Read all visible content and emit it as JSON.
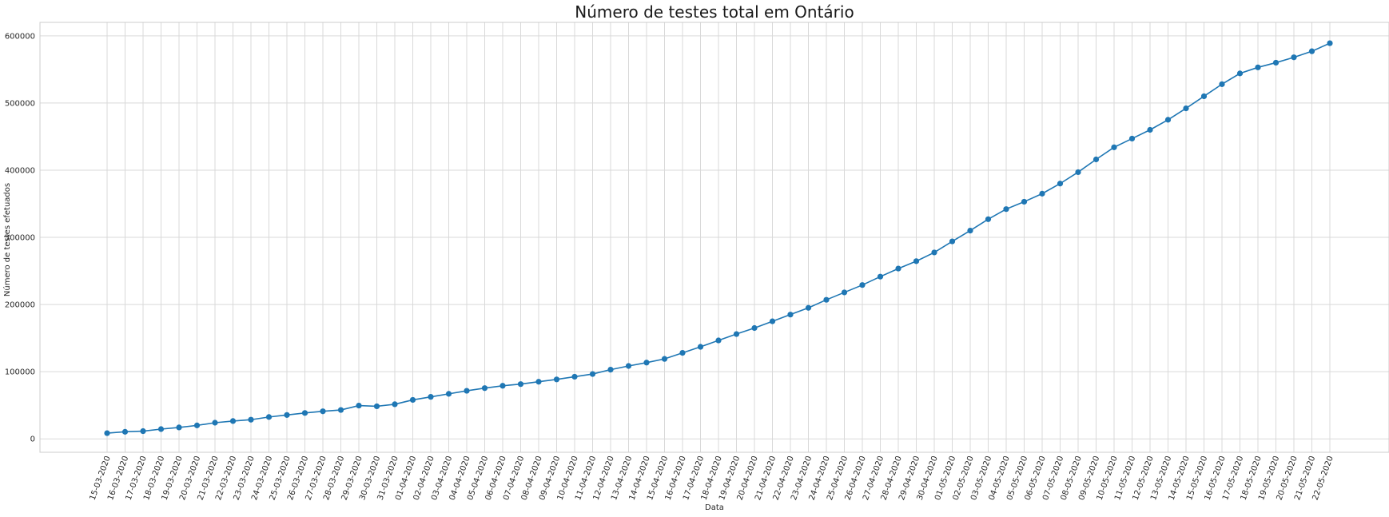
{
  "chart_data": {
    "type": "line",
    "title": "Número de testes total em Ontário",
    "xlabel": "Data",
    "ylabel": "Número de testes efetuados",
    "ylim": [
      -20000,
      620000
    ],
    "yticks": [
      0,
      100000,
      200000,
      300000,
      400000,
      500000,
      600000
    ],
    "grid": true,
    "legend": "none",
    "color": "#1f77b4",
    "categories": [
      "15-03-2020",
      "16-03-2020",
      "17-03-2020",
      "18-03-2020",
      "19-03-2020",
      "20-03-2020",
      "21-03-2020",
      "22-03-2020",
      "23-03-2020",
      "24-03-2020",
      "25-03-2020",
      "26-03-2020",
      "27-03-2020",
      "28-03-2020",
      "29-03-2020",
      "30-03-2020",
      "31-03-2020",
      "01-04-2020",
      "02-04-2020",
      "03-04-2020",
      "04-04-2020",
      "05-04-2020",
      "06-04-2020",
      "07-04-2020",
      "08-04-2020",
      "09-04-2020",
      "10-04-2020",
      "11-04-2020",
      "12-04-2020",
      "13-04-2020",
      "14-04-2020",
      "15-04-2020",
      "16-04-2020",
      "17-04-2020",
      "18-04-2020",
      "19-04-2020",
      "20-04-2020",
      "21-04-2020",
      "22-04-2020",
      "23-04-2020",
      "24-04-2020",
      "25-04-2020",
      "26-04-2020",
      "27-04-2020",
      "28-04-2020",
      "29-04-2020",
      "30-04-2020",
      "01-05-2020",
      "02-05-2020",
      "03-05-2020",
      "04-05-2020",
      "05-05-2020",
      "06-05-2020",
      "07-05-2020",
      "08-05-2020",
      "09-05-2020",
      "10-05-2020",
      "11-05-2020",
      "12-05-2020",
      "13-05-2020",
      "14-05-2020",
      "15-05-2020",
      "16-05-2020",
      "17-05-2020",
      "18-05-2020",
      "19-05-2020",
      "20-05-2020",
      "21-05-2020",
      "22-05-2020"
    ],
    "values": [
      8500,
      10500,
      11500,
      14500,
      17000,
      20000,
      24000,
      26500,
      28500,
      32500,
      35500,
      38500,
      41000,
      43000,
      49500,
      48500,
      51500,
      58000,
      62500,
      67000,
      71500,
      75500,
      79000,
      81500,
      85000,
      88500,
      92500,
      96500,
      103000,
      108500,
      113500,
      119000,
      128000,
      137000,
      146500,
      156000,
      165000,
      175000,
      185000,
      195000,
      207000,
      218000,
      229000,
      241500,
      253500,
      264500,
      277500,
      294000,
      310000,
      327000,
      342000,
      353000,
      365000,
      380000,
      397000,
      416000,
      434000,
      447000,
      460000,
      475000,
      492000,
      510000,
      528000,
      544000,
      553000,
      560000,
      568000,
      577000,
      589000
    ]
  }
}
